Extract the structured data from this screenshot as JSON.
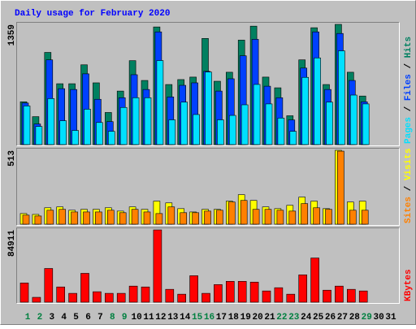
{
  "chart_data": [
    {
      "type": "bar",
      "title": "Daily usage for February 2020",
      "ylim": [
        0,
        1359
      ],
      "yticks": [
        1359
      ],
      "legend_separator": " / ",
      "series": [
        {
          "name": "Hits",
          "color": "#008060",
          "values": [
            484,
            316,
            1042,
            688,
            688,
            902,
            698,
            363,
            605,
            949,
            725,
            1330,
            679,
            735,
            763,
            1200,
            716,
            818,
            1181,
            1339,
            763,
            642,
            326,
            958,
            1321,
            679,
            1359,
            818,
            549,
            null,
            null
          ]
        },
        {
          "name": "Files",
          "color": "#0040ff",
          "values": [
            470,
            233,
            958,
            632,
            623,
            800,
            512,
            260,
            530,
            790,
            623,
            1274,
            539,
            670,
            698,
            828,
            605,
            744,
            1004,
            1190,
            660,
            530,
            279,
            865,
            1274,
            623,
            1256,
            725,
            484,
            null,
            null
          ]
        },
        {
          "name": "Pages",
          "color": "#00e0ff",
          "values": [
            437,
            205,
            520,
            270,
            160,
            400,
            250,
            150,
            420,
            530,
            530,
            950,
            280,
            480,
            340,
            820,
            280,
            330,
            450,
            680,
            460,
            300,
            150,
            760,
            980,
            480,
            1060,
            560,
            460,
            null,
            null
          ]
        }
      ]
    },
    {
      "type": "bar",
      "ylim": [
        0,
        513
      ],
      "yticks": [
        513
      ],
      "legend_separator": " / ",
      "series": [
        {
          "name": "Visits",
          "color": "#ffff00",
          "values": [
            74,
            68,
            114,
            120,
            97,
            103,
            103,
            114,
            91,
            120,
            103,
            160,
            148,
            108,
            85,
            103,
            103,
            160,
            205,
            165,
            120,
            108,
            131,
            188,
            160,
            108,
            513,
            154,
            160,
            null,
            null
          ]
        },
        {
          "name": "Sites",
          "color": "#ff8000",
          "values": [
            63,
            57,
            97,
            103,
            85,
            85,
            85,
            97,
            80,
            103,
            85,
            74,
            120,
            80,
            80,
            91,
            97,
            154,
            165,
            103,
            103,
            97,
            91,
            143,
            114,
            103,
            507,
            97,
            97,
            null,
            null
          ]
        }
      ]
    },
    {
      "type": "bar",
      "ylim": [
        0,
        84911
      ],
      "yticks": [
        84911
      ],
      "categories": [
        "1",
        "2",
        "3",
        "4",
        "5",
        "6",
        "7",
        "8",
        "9",
        "10",
        "11",
        "12",
        "13",
        "14",
        "15",
        "16",
        "17",
        "18",
        "19",
        "20",
        "21",
        "22",
        "23",
        "24",
        "25",
        "26",
        "27",
        "28",
        "29",
        "30",
        "31"
      ],
      "category_colors": [
        "#008040",
        "#008040",
        "#000000",
        "#000000",
        "#000000",
        "#000000",
        "#000000",
        "#008040",
        "#008040",
        "#000000",
        "#000000",
        "#000000",
        "#000000",
        "#000000",
        "#008040",
        "#008040",
        "#000000",
        "#000000",
        "#000000",
        "#000000",
        "#000000",
        "#008040",
        "#008040",
        "#000000",
        "#000000",
        "#000000",
        "#000000",
        "#000000",
        "#008040",
        "#000000",
        "#000000"
      ],
      "series": [
        {
          "name": "KBytes",
          "color": "#ff0000",
          "values": [
            22600,
            5700,
            39600,
            17900,
            10400,
            33900,
            12300,
            10400,
            10400,
            18900,
            17900,
            84911,
            15100,
            9400,
            31100,
            10400,
            20700,
            24500,
            24500,
            23600,
            13200,
            17000,
            9400,
            32100,
            51900,
            14100,
            18900,
            15100,
            13200,
            null,
            null
          ]
        }
      ]
    }
  ]
}
